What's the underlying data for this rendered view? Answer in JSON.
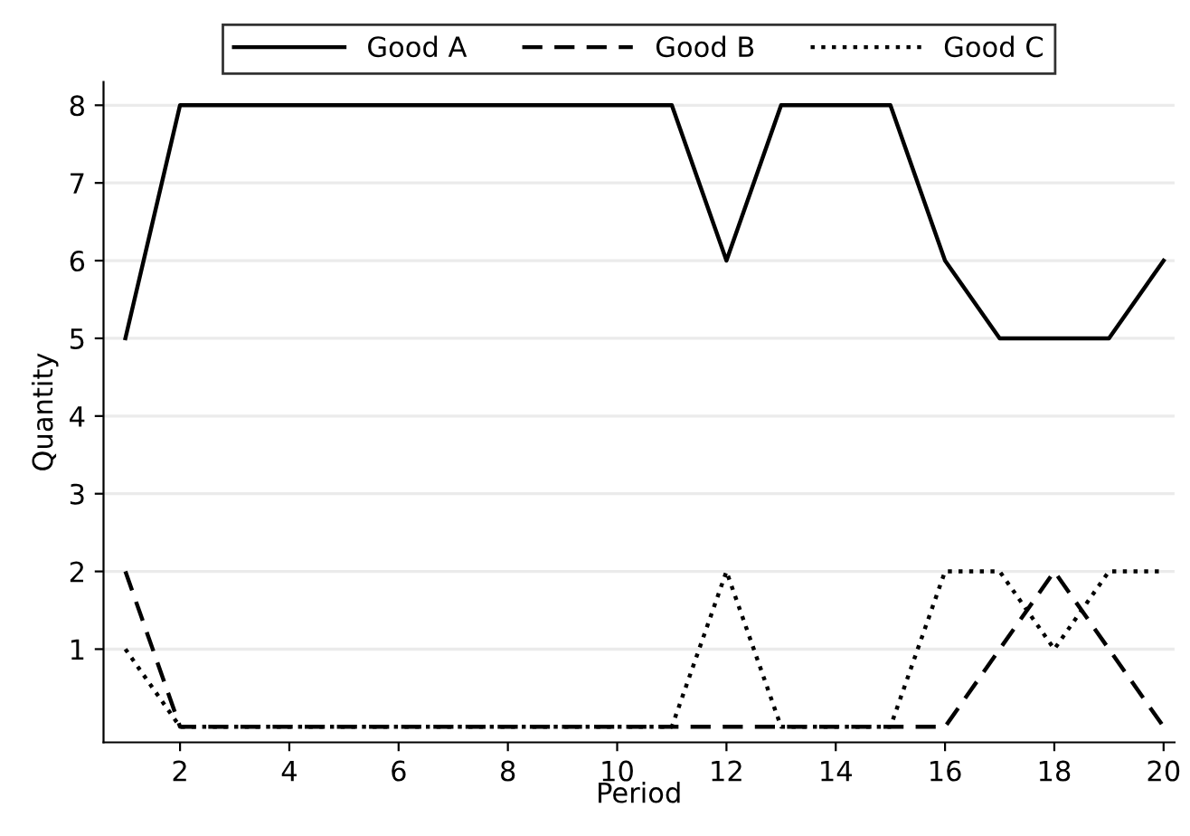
{
  "chart_data": {
    "type": "line",
    "xlabel": "Period",
    "ylabel": "Quantity",
    "x": [
      1,
      2,
      3,
      4,
      5,
      6,
      7,
      8,
      9,
      10,
      11,
      12,
      13,
      14,
      15,
      16,
      17,
      18,
      19,
      20
    ],
    "xlim": [
      0.6,
      20.2
    ],
    "xticks": [
      2,
      4,
      6,
      8,
      10,
      12,
      14,
      16,
      18,
      20
    ],
    "ylim": [
      -0.2,
      8.3
    ],
    "yticks": [
      1,
      2,
      3,
      4,
      5,
      6,
      7,
      8
    ],
    "grid": "y",
    "legend": "top",
    "marker": "none",
    "series": [
      {
        "name": "Good A",
        "color": "#000000",
        "line_style": "solid",
        "values": [
          5,
          8,
          8,
          8,
          8,
          8,
          8,
          8,
          8,
          8,
          8,
          6,
          8,
          8,
          8,
          6,
          5,
          5,
          5,
          6
        ]
      },
      {
        "name": "Good B",
        "color": "#000000",
        "line_style": "dashed",
        "values": [
          2,
          0,
          0,
          0,
          0,
          0,
          0,
          0,
          0,
          0,
          0,
          0,
          0,
          0,
          0,
          0,
          1,
          2,
          1,
          0
        ]
      },
      {
        "name": "Good C",
        "color": "#000000",
        "line_style": "dotted",
        "values": [
          1,
          0,
          0,
          0,
          0,
          0,
          0,
          0,
          0,
          0,
          0,
          2,
          0,
          0,
          0,
          2,
          2,
          1,
          2,
          2
        ]
      }
    ]
  }
}
